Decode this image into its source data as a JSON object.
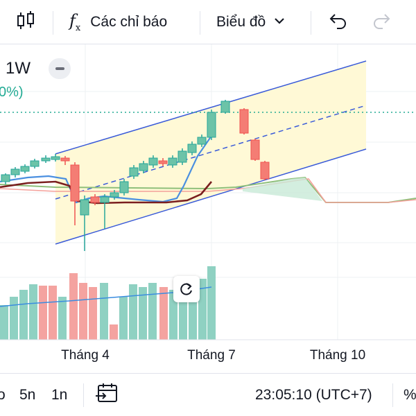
{
  "toolbar": {
    "candle_icon": "candlestick-icon",
    "indicators_label": "Các chỉ báo",
    "chart_type_label": "Biểu đồ",
    "undo_icon": "undo-icon",
    "redo_icon": "redo-icon"
  },
  "chart": {
    "interval": "1W",
    "change_fragment": "0%)",
    "colors": {
      "up": "#6cc3a8",
      "down": "#f47d74",
      "channel_fill": "#fff9d6",
      "channel_line": "#3a5bd9",
      "price_line": "#22ab94"
    },
    "x_labels": [
      "Tháng 4",
      "Tháng 7",
      "Tháng 10"
    ],
    "reset_icon": "rotate-icon"
  },
  "bottombar": {
    "items": [
      "o",
      "5n",
      "1n"
    ],
    "calendar_icon": "calendar-goto-icon",
    "time": "23:05:10 (UTC+7)",
    "percent": "%"
  }
}
